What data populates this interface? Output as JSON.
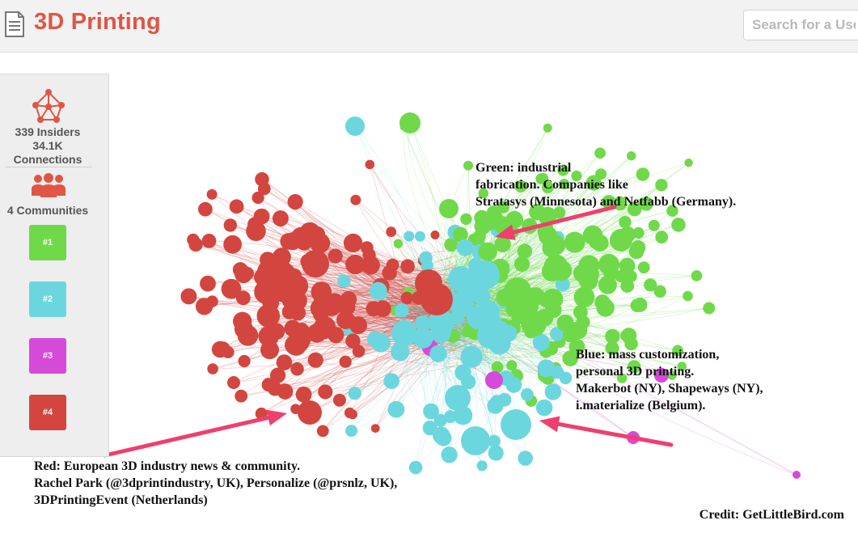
{
  "header": {
    "title": "3D Printing",
    "search_placeholder": "Search for a User"
  },
  "sidebar": {
    "insiders": "339 Insiders",
    "connections_count": "34.1K",
    "connections_label": "Connections",
    "communities": "4 Communities",
    "buttons": [
      {
        "label": "#1",
        "color": "#6fd94a"
      },
      {
        "label": "#2",
        "color": "#6cd6de"
      },
      {
        "label": "#3",
        "color": "#d54ad9"
      },
      {
        "label": "#4",
        "color": "#d2463f"
      }
    ]
  },
  "annotations": {
    "green": [
      "Green: industrial",
      "fabrication. Companies like",
      "Stratasys (Minnesota) and Netfabb (Germany)."
    ],
    "blue": [
      "Blue: mass customization,",
      "personal 3D printing.",
      "Makerbot (NY), Shapeways (NY),",
      "i.materialize (Belgium)."
    ],
    "red": [
      "Red: European 3D industry news & community.",
      "Rachel Park (@3dprintindustry, UK), Personalize (@prsnlz, UK),",
      "3DPrintingEvent (Netherlands)"
    ]
  },
  "credit": "Credit: GetLittleBird.com",
  "colors": {
    "green": "#6fd94a",
    "blue": "#6cd6de",
    "magenta": "#d54ad9",
    "red": "#d2463f",
    "title": "#e05544",
    "arrow": "#ef3f6e"
  }
}
